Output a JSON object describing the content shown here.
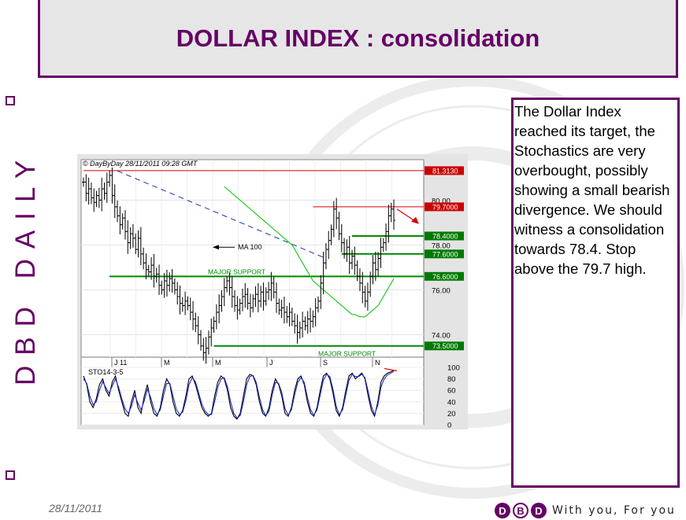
{
  "slide": {
    "title": "DOLLAR INDEX : consolidation",
    "side_brand": "DBD DAILY",
    "commentary": "The Dollar Index reached its target, the Stochastics are very overbought, possibly showing a small bearish divergence. We should witness a consolidation towards 78.4. Stop above the 79.7 high.",
    "footer_date": "28/11/2011",
    "logo_letters": [
      "D",
      "B",
      "D"
    ],
    "tagline": "With you, For you",
    "brand_color": "#660066"
  },
  "chart_data": [
    {
      "type": "bar",
      "subtype": "ohlc",
      "header": "DayByDay 28/11/2011  09:28 GMT",
      "x_axis_labels": [
        "J 11",
        "M",
        "M",
        "J",
        "S",
        "N"
      ],
      "ylim": [
        73.0,
        81.8
      ],
      "y_ticks": [
        80.0,
        78.0,
        76.0,
        74.0
      ],
      "y_tick_labels": [
        "80.00",
        "78.00",
        "76.00",
        "74.00"
      ],
      "closes": [
        80.8,
        80.3,
        80.5,
        80.1,
        79.9,
        80.2,
        80.0,
        80.5,
        80.3,
        80.8,
        81.1,
        80.2,
        79.7,
        79.3,
        78.9,
        79.2,
        78.6,
        78.1,
        78.5,
        78.3,
        77.8,
        78.3,
        77.6,
        77.2,
        76.9,
        76.8,
        77.1,
        76.6,
        76.7,
        76.2,
        76.0,
        76.4,
        76.2,
        76.5,
        76.3,
        76.0,
        75.7,
        75.4,
        75.3,
        75.5,
        75.3,
        75.0,
        74.7,
        74.4,
        74.0,
        73.5,
        73.2,
        73.4,
        73.9,
        74.3,
        74.6,
        75.0,
        75.3,
        75.7,
        76.1,
        76.4,
        76.1,
        75.7,
        75.3,
        75.1,
        75.4,
        75.7,
        75.8,
        75.4,
        75.2,
        75.6,
        75.8,
        75.5,
        75.9,
        75.5,
        75.9,
        76.0,
        76.3,
        75.9,
        75.4,
        75.1,
        75.2,
        75.0,
        74.8,
        75.0,
        74.6,
        74.4,
        74.1,
        74.3,
        74.6,
        74.4,
        74.7,
        74.6,
        74.8,
        75.2,
        75.5,
        76.3,
        77.2,
        77.8,
        78.2,
        78.7,
        79.6,
        79.2,
        78.5,
        78.1,
        77.6,
        77.9,
        77.2,
        77.5,
        77.1,
        76.6,
        76.3,
        75.9,
        75.5,
        75.9,
        76.6,
        77.2,
        76.9,
        77.4,
        77.9,
        78.1,
        78.6,
        79.3,
        79.6,
        79.1
      ],
      "ma_label": "MA 100",
      "ma_values": [
        80.6,
        80.5,
        80.4,
        80.3,
        80.2,
        80.1,
        80.0,
        79.9,
        79.8,
        79.7,
        79.6,
        79.5,
        79.4,
        79.3,
        79.2,
        79.1,
        79.0,
        78.9,
        78.8,
        78.7,
        78.6,
        78.5,
        78.4,
        78.3,
        78.2,
        78.1,
        78.0,
        77.8,
        77.6,
        77.4,
        77.2,
        77.0,
        76.8,
        76.6,
        76.4,
        76.3,
        76.2,
        76.1,
        76.0,
        75.9,
        75.8,
        75.7,
        75.6,
        75.5,
        75.4,
        75.3,
        75.2,
        75.1,
        75.0,
        74.9,
        74.9,
        74.85,
        74.8,
        74.8,
        74.8,
        74.9,
        75.0,
        75.1,
        75.2,
        75.3,
        75.5,
        75.7,
        75.9,
        76.1,
        76.3,
        76.5
      ],
      "trendline": {
        "style": "dashed",
        "color": "#2233aa",
        "from": {
          "x_index": 13,
          "y": 81.3
        },
        "to": {
          "x_index": 93,
          "y": 77.4
        }
      },
      "levels": [
        {
          "value": 81.313,
          "label": "81.3130",
          "color": "#d40000",
          "line_start_index": 0
        },
        {
          "value": 79.7,
          "label": "79.7000",
          "color": "#d40000",
          "line_start_index": 88
        },
        {
          "value": 78.4,
          "label": "78.4000",
          "color": "#008800",
          "line_start_index": 103
        },
        {
          "value": 77.6,
          "label": "77.6000",
          "color": "#008800",
          "line_start_index": 99
        },
        {
          "value": 76.6,
          "label": "76.6000",
          "color": "#008800",
          "line_start_index": 10
        },
        {
          "value": 73.5,
          "label": "73.5000",
          "color": "#008800",
          "line_start_index": 50
        }
      ],
      "annotations": [
        {
          "text": "MAJOR SUPPORT",
          "color": "#008800",
          "near_level": 76.6
        },
        {
          "text": "MAJOR SUPPORT",
          "color": "#008800",
          "near_level": 73.5
        }
      ],
      "forecast_arrow": {
        "color": "#d40000",
        "direction": "down-right"
      },
      "grid": true
    },
    {
      "type": "line",
      "title": "STO14-3-5",
      "ylim": [
        0,
        100
      ],
      "y_ticks": [
        100,
        80,
        60,
        40,
        20,
        0
      ],
      "y_tick_labels": [
        "100",
        "80",
        "60",
        "40",
        "20",
        "0"
      ],
      "series": [
        {
          "color": "#000000",
          "values": [
            85,
            70,
            40,
            30,
            45,
            70,
            80,
            60,
            50,
            75,
            85,
            60,
            40,
            20,
            15,
            40,
            60,
            30,
            20,
            50,
            70,
            40,
            20,
            15,
            30,
            60,
            80,
            70,
            40,
            20,
            15,
            25,
            50,
            80,
            85,
            70,
            50,
            30,
            20,
            15,
            20,
            50,
            75,
            85,
            80,
            60,
            30,
            15,
            10,
            20,
            50,
            80,
            88,
            85,
            70,
            40,
            20,
            15,
            30,
            60,
            80,
            70,
            50,
            20,
            15,
            30,
            60,
            80,
            85,
            70,
            40,
            20,
            15,
            30,
            60,
            85,
            90,
            80,
            55,
            25,
            15,
            30,
            60,
            85,
            90,
            80,
            85,
            90,
            80,
            50,
            25,
            15,
            40,
            75,
            85,
            90,
            92,
            95
          ]
        },
        {
          "color": "#1c2bd6",
          "values": [
            80,
            72,
            50,
            35,
            40,
            60,
            75,
            65,
            55,
            68,
            80,
            65,
            45,
            28,
            20,
            32,
            52,
            38,
            26,
            42,
            62,
            48,
            28,
            18,
            26,
            50,
            72,
            72,
            50,
            28,
            18,
            22,
            42,
            70,
            82,
            75,
            56,
            36,
            24,
            18,
            18,
            40,
            66,
            80,
            82,
            66,
            40,
            20,
            12,
            16,
            40,
            70,
            84,
            86,
            74,
            48,
            26,
            16,
            24,
            52,
            74,
            72,
            56,
            28,
            17,
            26,
            52,
            74,
            82,
            74,
            48,
            26,
            17,
            26,
            52,
            78,
            88,
            84,
            62,
            32,
            18,
            26,
            52,
            78,
            88,
            84,
            84,
            88,
            82,
            58,
            32,
            18,
            34,
            66,
            80,
            87,
            90,
            93
          ]
        }
      ],
      "divergence_line_color": "#d40000"
    }
  ]
}
